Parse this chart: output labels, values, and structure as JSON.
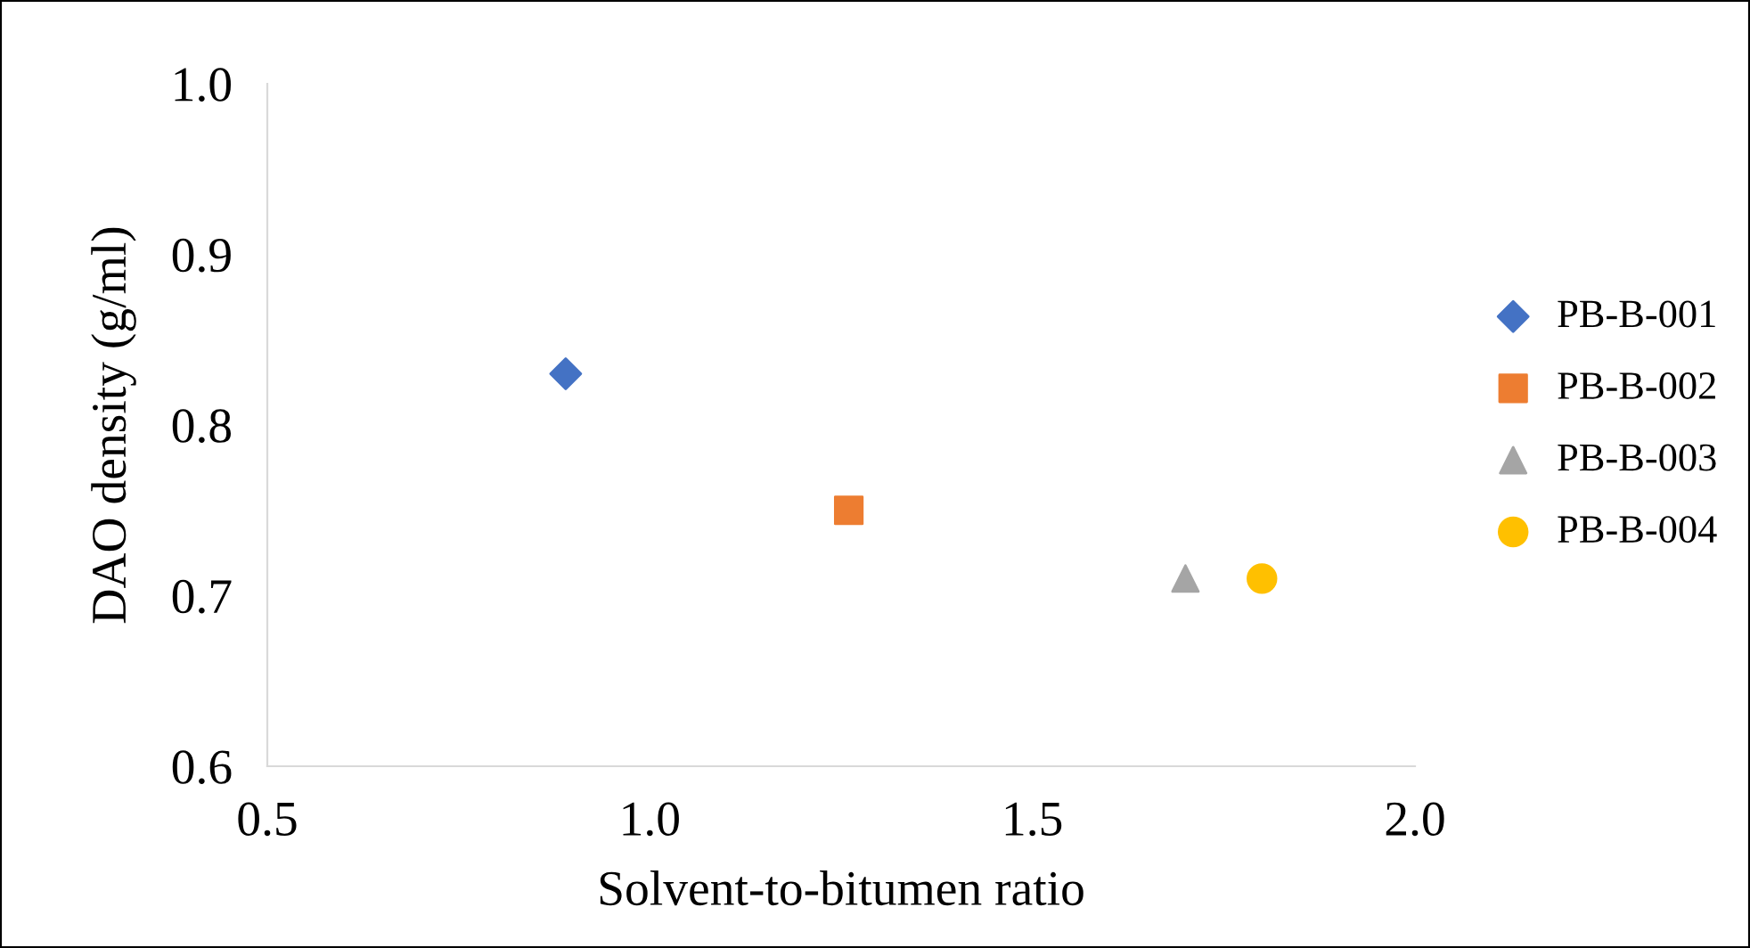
{
  "chart_data": {
    "type": "scatter",
    "xlabel": "Solvent-to-bitumen ratio",
    "ylabel": "DAO density (g/ml)",
    "xlim": [
      0.5,
      2.0
    ],
    "xticks": [
      {
        "value": 0.5,
        "label": "0.5"
      },
      {
        "value": 1.0,
        "label": "1.0"
      },
      {
        "value": 1.5,
        "label": "1.5"
      },
      {
        "value": 2.0,
        "label": "2.0"
      }
    ],
    "ylim": [
      0.6,
      1.0
    ],
    "yticks": [
      {
        "value": 0.6,
        "label": "0.6"
      },
      {
        "value": 0.7,
        "label": "0.7"
      },
      {
        "value": 0.8,
        "label": "0.8"
      },
      {
        "value": 0.9,
        "label": "0.9"
      },
      {
        "value": 1.0,
        "label": "1.0"
      }
    ],
    "grid": false,
    "legend": "right",
    "series": [
      {
        "name": "PB-B-001",
        "color": "#4472c4",
        "marker": "diamond",
        "x": [
          0.89
        ],
        "values": [
          0.83
        ]
      },
      {
        "name": "PB-B-002",
        "color": "#ed7d31",
        "marker": "square",
        "x": [
          1.26
        ],
        "values": [
          0.75
        ]
      },
      {
        "name": "PB-B-003",
        "color": "#a5a5a5",
        "marker": "triangle",
        "x": [
          1.7
        ],
        "values": [
          0.71
        ]
      },
      {
        "name": "PB-B-004",
        "color": "#ffc000",
        "marker": "circle",
        "x": [
          1.8
        ],
        "values": [
          0.71
        ]
      }
    ]
  }
}
